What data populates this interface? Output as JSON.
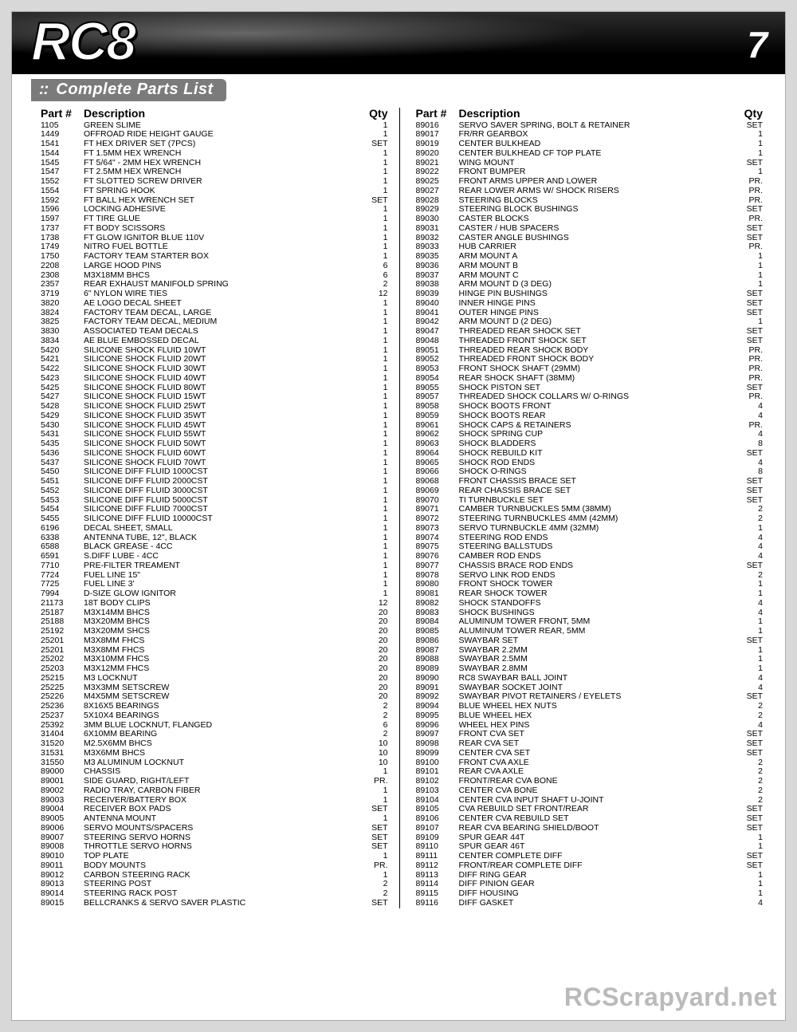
{
  "page": {
    "logo": "RC8",
    "number": "7",
    "subtitle_prefix": "::",
    "subtitle": "Complete Parts List",
    "watermark": "RCScrapyard.net",
    "headers": {
      "part": "Part #",
      "desc": "Description",
      "qty": "Qty"
    },
    "colors": {
      "page_bg": "#d8d8d8",
      "header_grad_top": "#2c2c2c",
      "header_grad_bot": "#000000",
      "subtitle_bg": "#7b7b7b"
    }
  },
  "left": [
    [
      "1105",
      "GREEN SLIME",
      "1"
    ],
    [
      "1449",
      "OFFROAD RIDE HEIGHT GAUGE",
      "1"
    ],
    [
      "1541",
      "FT HEX DRIVER SET (7PCS)",
      "SET"
    ],
    [
      "1544",
      "FT 1.5MM HEX WRENCH",
      "1"
    ],
    [
      "1545",
      "FT 5/64\" - 2MM HEX WRENCH",
      "1"
    ],
    [
      "1547",
      "FT 2.5MM HEX WRENCH",
      "1"
    ],
    [
      "1552",
      "FT SLOTTED SCREW DRIVER",
      "1"
    ],
    [
      "1554",
      "FT SPRING HOOK",
      "1"
    ],
    [
      "1592",
      "FT BALL HEX WRENCH SET",
      "SET"
    ],
    [
      "1596",
      "LOCKING ADHESIVE",
      "1"
    ],
    [
      "1597",
      "FT TIRE GLUE",
      "1"
    ],
    [
      "1737",
      "FT BODY SCISSORS",
      "1"
    ],
    [
      "1738",
      "FT GLOW IGNITOR BLUE 110V",
      "1"
    ],
    [
      "1749",
      "NITRO FUEL BOTTLE",
      "1"
    ],
    [
      "1750",
      "FACTORY TEAM STARTER BOX",
      "1"
    ],
    [
      "2208",
      "LARGE HOOD PINS",
      "6"
    ],
    [
      "2308",
      "M3X18MM BHCS",
      "6"
    ],
    [
      "2357",
      "REAR EXHAUST MANIFOLD SPRING",
      "2"
    ],
    [
      "3719",
      "6\" NYLON WIRE TIES",
      "12"
    ],
    [
      "3820",
      "AE LOGO DECAL SHEET",
      "1"
    ],
    [
      "3824",
      "FACTORY TEAM DECAL, LARGE",
      "1"
    ],
    [
      "3825",
      "FACTORY TEAM DECAL, MEDIUM",
      "1"
    ],
    [
      "3830",
      "ASSOCIATED TEAM DECALS",
      "1"
    ],
    [
      "3834",
      "AE BLUE EMBOSSED DECAL",
      "1"
    ],
    [
      "5420",
      "SILICONE SHOCK FLUID 10WT",
      "1"
    ],
    [
      "5421",
      "SILICONE SHOCK FLUID 20WT",
      "1"
    ],
    [
      "5422",
      "SILICONE SHOCK FLUID 30WT",
      "1"
    ],
    [
      "5423",
      "SILICONE SHOCK FLUID 40WT",
      "1"
    ],
    [
      "5425",
      "SILICONE SHOCK FLUID 80WT",
      "1"
    ],
    [
      "5427",
      "SILICONE SHOCK FLUID 15WT",
      "1"
    ],
    [
      "5428",
      "SILICONE SHOCK FLUID 25WT",
      "1"
    ],
    [
      "5429",
      "SILICONE SHOCK FLUID 35WT",
      "1"
    ],
    [
      "5430",
      "SILICONE SHOCK FLUID 45WT",
      "1"
    ],
    [
      "5431",
      "SILICONE SHOCK FLUID 55WT",
      "1"
    ],
    [
      "5435",
      "SILICONE SHOCK FLUID 50WT",
      "1"
    ],
    [
      "5436",
      "SILICONE SHOCK FLUID 60WT",
      "1"
    ],
    [
      "5437",
      "SILICONE SHOCK FLUID 70WT",
      "1"
    ],
    [
      "5450",
      "SILICONE DIFF FLUID 1000CST",
      "1"
    ],
    [
      "5451",
      "SILICONE DIFF FLUID 2000CST",
      "1"
    ],
    [
      "5452",
      "SILICONE DIFF FLUID 3000CST",
      "1"
    ],
    [
      "5453",
      "SILICONE DIFF FLUID 5000CST",
      "1"
    ],
    [
      "5454",
      "SILICONE DIFF FLUID 7000CST",
      "1"
    ],
    [
      "5455",
      "SILICONE DIFF FLUID 10000CST",
      "1"
    ],
    [
      "6196",
      "DECAL SHEET, SMALL",
      "1"
    ],
    [
      "6338",
      "ANTENNA TUBE, 12\", BLACK",
      "1"
    ],
    [
      "6588",
      "BLACK GREASE - 4CC",
      "1"
    ],
    [
      "6591",
      "S.DIFF LUBE - 4CC",
      "1"
    ],
    [
      "7710",
      "PRE-FILTER TREAMENT",
      "1"
    ],
    [
      "7724",
      "FUEL LINE 15\"",
      "1"
    ],
    [
      "7725",
      "FUEL LINE 3'",
      "1"
    ],
    [
      "7994",
      "D-SIZE GLOW IGNITOR",
      "1"
    ],
    [
      "21173",
      "18T BODY CLIPS",
      "12"
    ],
    [
      "25187",
      "M3X14MM BHCS",
      "20"
    ],
    [
      "25188",
      "M3X20MM BHCS",
      "20"
    ],
    [
      "25192",
      "M3X20MM SHCS",
      "20"
    ],
    [
      "25201",
      "M3X8MM FHCS",
      "20"
    ],
    [
      "25201",
      "M3X8MM FHCS",
      "20"
    ],
    [
      "25202",
      "M3X10MM FHCS",
      "20"
    ],
    [
      "25203",
      "M3X12MM FHCS",
      "20"
    ],
    [
      "25215",
      "M3 LOCKNUT",
      "20"
    ],
    [
      "25225",
      "M3X3MM SETSCREW",
      "20"
    ],
    [
      "25226",
      "M4X5MM SETSCREW",
      "20"
    ],
    [
      "25236",
      "8X16X5 BEARINGS",
      "2"
    ],
    [
      "25237",
      "5X10X4 BEARINGS",
      "2"
    ],
    [
      "25392",
      "3MM BLUE LOCKNUT, FLANGED",
      "6"
    ],
    [
      "31404",
      "6X10MM BEARING",
      "2"
    ],
    [
      "31520",
      "M2.5X6MM BHCS",
      "10"
    ],
    [
      "31531",
      "M3X6MM BHCS",
      "10"
    ],
    [
      "31550",
      "M3 ALUMINUM LOCKNUT",
      "10"
    ],
    [
      "89000",
      "CHASSIS",
      "1"
    ],
    [
      "89001",
      "SIDE GUARD, RIGHT/LEFT",
      "PR."
    ],
    [
      "89002",
      "RADIO TRAY, CARBON FIBER",
      "1"
    ],
    [
      "89003",
      "RECEIVER/BATTERY BOX",
      "1"
    ],
    [
      "89004",
      "RECEIVER BOX PADS",
      "SET"
    ],
    [
      "89005",
      "ANTENNA MOUNT",
      "1"
    ],
    [
      "89006",
      "SERVO MOUNTS/SPACERS",
      "SET"
    ],
    [
      "89007",
      "STEERING SERVO HORNS",
      "SET"
    ],
    [
      "89008",
      "THROTTLE SERVO HORNS",
      "SET"
    ],
    [
      "89010",
      "TOP PLATE",
      "1"
    ],
    [
      "89011",
      "BODY MOUNTS",
      "PR."
    ],
    [
      "89012",
      "CARBON STEERING RACK",
      "1"
    ],
    [
      "89013",
      "STEERING POST",
      "2"
    ],
    [
      "89014",
      "STEERING RACK POST",
      "2"
    ],
    [
      "89015",
      "BELLCRANKS & SERVO SAVER PLASTIC",
      "SET"
    ]
  ],
  "right": [
    [
      "89016",
      "SERVO SAVER SPRING, BOLT & RETAINER",
      "SET"
    ],
    [
      "89017",
      "FR/RR GEARBOX",
      "1"
    ],
    [
      "89019",
      "CENTER BULKHEAD",
      "1"
    ],
    [
      "89020",
      "CENTER BULKHEAD CF TOP PLATE",
      "1"
    ],
    [
      "89021",
      "WING MOUNT",
      "SET"
    ],
    [
      "89022",
      "FRONT BUMPER",
      "1"
    ],
    [
      "89025",
      "FRONT ARMS UPPER AND LOWER",
      "PR."
    ],
    [
      "89027",
      "REAR LOWER ARMS W/ SHOCK RISERS",
      "PR."
    ],
    [
      "89028",
      "STEERING BLOCKS",
      "PR."
    ],
    [
      "89029",
      "STEERING BLOCK BUSHINGS",
      "SET"
    ],
    [
      "89030",
      "CASTER BLOCKS",
      "PR."
    ],
    [
      "89031",
      "CASTER / HUB SPACERS",
      "SET"
    ],
    [
      "89032",
      "CASTER ANGLE BUSHINGS",
      "SET"
    ],
    [
      "89033",
      "HUB CARRIER",
      "PR."
    ],
    [
      "89035",
      "ARM MOUNT A",
      "1"
    ],
    [
      "89036",
      "ARM MOUNT B",
      "1"
    ],
    [
      "89037",
      "ARM MOUNT C",
      "1"
    ],
    [
      "89038",
      "ARM MOUNT D (3 DEG)",
      "1"
    ],
    [
      "89039",
      "HINGE PIN BUSHINGS",
      "SET"
    ],
    [
      "89040",
      "INNER HINGE PINS",
      "SET"
    ],
    [
      "89041",
      "OUTER HINGE PINS",
      "SET"
    ],
    [
      "89042",
      "ARM MOUNT D (2 DEG)",
      "1"
    ],
    [
      "89047",
      "THREADED REAR SHOCK SET",
      "SET"
    ],
    [
      "89048",
      "THREADED FRONT SHOCK SET",
      "SET"
    ],
    [
      "89051",
      "THREADED REAR SHOCK BODY",
      "PR."
    ],
    [
      "89052",
      "THREADED FRONT SHOCK BODY",
      "PR."
    ],
    [
      "89053",
      "FRONT SHOCK SHAFT (29MM)",
      "PR."
    ],
    [
      "89054",
      "REAR SHOCK SHAFT (38MM)",
      "PR."
    ],
    [
      "89055",
      "SHOCK PISTON SET",
      "SET"
    ],
    [
      "89057",
      "THREADED SHOCK COLLARS W/ O-RINGS",
      "PR."
    ],
    [
      "89058",
      "SHOCK BOOTS FRONT",
      "4"
    ],
    [
      "89059",
      "SHOCK BOOTS REAR",
      "4"
    ],
    [
      "89061",
      "SHOCK CAPS & RETAINERS",
      "PR."
    ],
    [
      "89062",
      "SHOCK SPRING CUP",
      "4"
    ],
    [
      "89063",
      "SHOCK BLADDERS",
      "8"
    ],
    [
      "89064",
      "SHOCK REBUILD KIT",
      "SET"
    ],
    [
      "89065",
      "SHOCK ROD ENDS",
      "4"
    ],
    [
      "89066",
      "SHOCK O-RINGS",
      "8"
    ],
    [
      "89068",
      "FRONT CHASSIS BRACE SET",
      "SET"
    ],
    [
      "89069",
      "REAR CHASSIS BRACE SET",
      "SET"
    ],
    [
      "89070",
      "TI TURNBUCKLE SET",
      "SET"
    ],
    [
      "89071",
      "CAMBER TURNBUCKLES 5MM (38MM)",
      "2"
    ],
    [
      "89072",
      "STEERING TURNBUCKLES 4MM (42MM)",
      "2"
    ],
    [
      "89073",
      "SERVO TURNBUCKLE 4MM (32MM)",
      "1"
    ],
    [
      "89074",
      "STEERING ROD ENDS",
      "4"
    ],
    [
      "89075",
      "STEERING BALLSTUDS",
      "4"
    ],
    [
      "89076",
      "CAMBER ROD ENDS",
      "4"
    ],
    [
      "89077",
      "CHASSIS BRACE ROD ENDS",
      "SET"
    ],
    [
      "89078",
      "SERVO LINK ROD ENDS",
      "2"
    ],
    [
      "89080",
      "FRONT SHOCK TOWER",
      "1"
    ],
    [
      "89081",
      "REAR SHOCK TOWER",
      "1"
    ],
    [
      "89082",
      "SHOCK STANDOFFS",
      "4"
    ],
    [
      "89083",
      "SHOCK BUSHINGS",
      "4"
    ],
    [
      "89084",
      "ALUMINUM TOWER FRONT, 5MM",
      "1"
    ],
    [
      "89085",
      "ALUMINUM TOWER REAR, 5MM",
      "1"
    ],
    [
      "89086",
      "SWAYBAR SET",
      "SET"
    ],
    [
      "89087",
      "SWAYBAR 2.2MM",
      "1"
    ],
    [
      "89088",
      "SWAYBAR 2.5MM",
      "1"
    ],
    [
      "89089",
      "SWAYBAR 2.8MM",
      "1"
    ],
    [
      "89090",
      "RC8 SWAYBAR BALL JOINT",
      "4"
    ],
    [
      "89091",
      "SWAYBAR SOCKET JOINT",
      "4"
    ],
    [
      "89092",
      "SWAYBAR PIVOT RETAINERS / EYELETS",
      "SET"
    ],
    [
      "89094",
      "BLUE WHEEL HEX NUTS",
      "2"
    ],
    [
      "89095",
      "BLUE WHEEL HEX",
      "2"
    ],
    [
      "89096",
      "WHEEL HEX PINS",
      "4"
    ],
    [
      "89097",
      "FRONT CVA SET",
      "SET"
    ],
    [
      "89098",
      "REAR CVA SET",
      "SET"
    ],
    [
      "89099",
      "CENTER CVA SET",
      "SET"
    ],
    [
      "89100",
      "FRONT CVA AXLE",
      "2"
    ],
    [
      "89101",
      "REAR CVA AXLE",
      "2"
    ],
    [
      "89102",
      "FRONT/REAR CVA BONE",
      "2"
    ],
    [
      "89103",
      "CENTER CVA BONE",
      "2"
    ],
    [
      "89104",
      "CENTER CVA INPUT SHAFT U-JOINT",
      "2"
    ],
    [
      "89105",
      "CVA REBUILD SET FRONT/REAR",
      "SET"
    ],
    [
      "89106",
      "CENTER CVA REBUILD SET",
      "SET"
    ],
    [
      "89107",
      "REAR CVA BEARING SHIELD/BOOT",
      "SET"
    ],
    [
      "89109",
      "SPUR GEAR 44T",
      "1"
    ],
    [
      "89110",
      "SPUR GEAR 46T",
      "1"
    ],
    [
      "89111",
      "CENTER COMPLETE DIFF",
      "SET"
    ],
    [
      "89112",
      "FRONT/REAR COMPLETE DIFF",
      "SET"
    ],
    [
      "89113",
      "DIFF RING GEAR",
      "1"
    ],
    [
      "89114",
      "DIFF PINION GEAR",
      "1"
    ],
    [
      "89115",
      "DIFF HOUSING",
      "1"
    ],
    [
      "89116",
      "DIFF GASKET",
      "4"
    ]
  ]
}
